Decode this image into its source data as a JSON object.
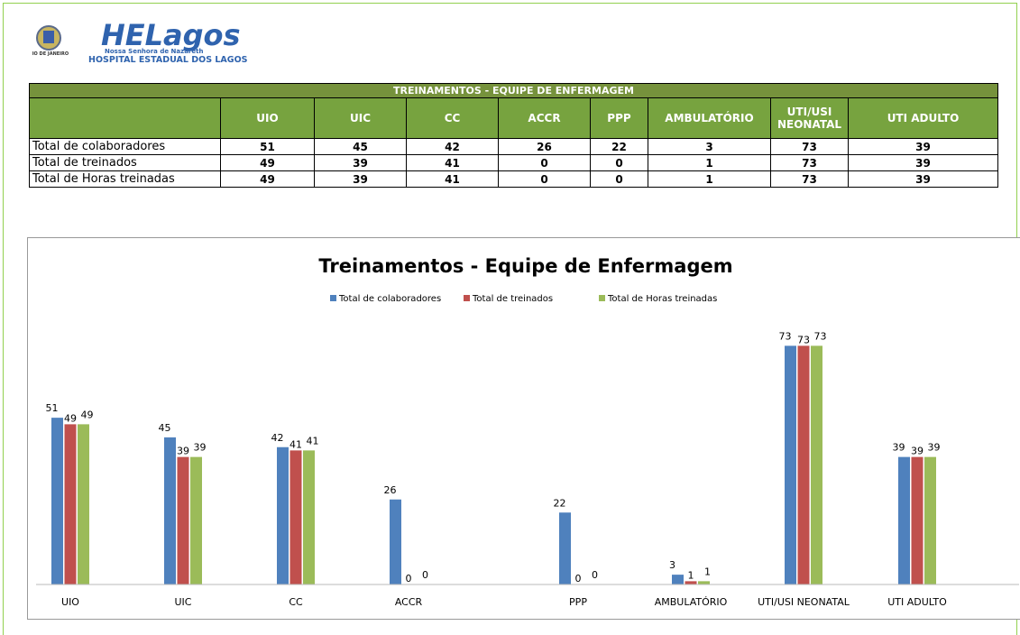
{
  "logo": {
    "brand": "HELagos",
    "tagline": "Nossa Senhora de Nazareth",
    "hospital": "HOSPITAL ESTADUAL DOS LAGOS",
    "state": "RIO DE JANEIRO"
  },
  "table": {
    "title": "TREINAMENTOS - EQUIPE DE ENFERMAGEM",
    "columns": [
      "UIO",
      "UIC",
      "CC",
      "ACCR",
      "PPP",
      "AMBULATÓRIO",
      "UTI/USI NEONATAL",
      "UTI ADULTO"
    ],
    "rows": [
      {
        "label": "Total de colaboradores",
        "values": [
          51,
          45,
          42,
          26,
          22,
          3,
          73,
          39
        ]
      },
      {
        "label": "Total de treinados",
        "values": [
          49,
          39,
          41,
          0,
          0,
          1,
          73,
          39
        ]
      },
      {
        "label": "Total de Horas treinadas",
        "values": [
          49,
          39,
          41,
          0,
          0,
          1,
          73,
          39
        ]
      }
    ]
  },
  "chart_data": {
    "type": "bar",
    "title": "Treinamentos - Equipe de Enfermagem",
    "categories": [
      "UIO",
      "UIC",
      "CC",
      "ACCR",
      "PPP",
      "AMBULATÓRIO",
      "UTI/USI NEONATAL",
      "UTI ADULTO"
    ],
    "series": [
      {
        "name": "Total de colaboradores",
        "color": "#4f81bd",
        "values": [
          51,
          45,
          42,
          26,
          22,
          3,
          73,
          39
        ]
      },
      {
        "name": "Total de treinados",
        "color": "#c0504d",
        "values": [
          49,
          39,
          41,
          0,
          0,
          1,
          73,
          39
        ]
      },
      {
        "name": "Total de Horas treinadas",
        "color": "#9bbb59",
        "values": [
          49,
          39,
          41,
          0,
          0,
          1,
          73,
          39
        ]
      }
    ],
    "ylim": [
      0,
      80
    ],
    "legend": "top",
    "data_labels": true
  }
}
